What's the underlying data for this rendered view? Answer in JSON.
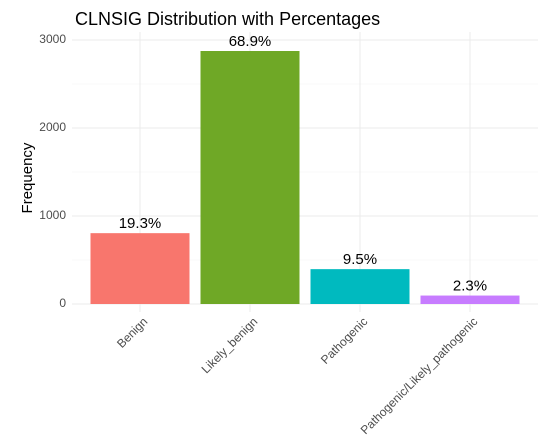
{
  "chart_data": {
    "type": "bar",
    "title": "CLNSIG Distribution with Percentages",
    "y_label": "Frequency",
    "categories": [
      "Benign",
      "Likely_benign",
      "Pathogenic",
      "Pathogenic/Likely_pathogenic"
    ],
    "values": [
      805,
      2875,
      396,
      96
    ],
    "percent_labels": [
      "19.3%",
      "68.9%",
      "9.5%",
      "2.3%"
    ],
    "colors": [
      "#F8766D",
      "#6FA826",
      "#00BABF",
      "#C77CFF"
    ],
    "ylim": [
      0,
      3000
    ],
    "yticks": [
      0,
      1000,
      2000,
      3000
    ],
    "minor_yticks": [
      500,
      1500,
      2500
    ],
    "grid": true
  }
}
